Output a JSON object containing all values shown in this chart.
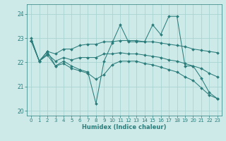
{
  "xlabel": "Humidex (Indice chaleur)",
  "ylabel": "",
  "bg_color": "#ceeae8",
  "grid_color": "#a8d4d2",
  "line_color": "#2a7d7b",
  "ylim": [
    19.8,
    24.4
  ],
  "xlim": [
    -0.5,
    23.5
  ],
  "yticks": [
    20,
    21,
    22,
    23,
    24
  ],
  "xticks": [
    0,
    1,
    2,
    3,
    4,
    5,
    6,
    7,
    8,
    9,
    10,
    11,
    12,
    13,
    14,
    15,
    16,
    17,
    18,
    19,
    20,
    21,
    22,
    23
  ],
  "lines": [
    {
      "x": [
        0,
        1,
        2,
        3,
        4,
        5,
        6,
        7,
        8,
        9,
        10,
        11,
        12,
        13,
        14,
        15,
        16,
        17,
        18,
        19,
        20,
        21,
        22,
        23
      ],
      "y": [
        23.0,
        22.05,
        22.45,
        21.85,
        22.05,
        21.85,
        21.7,
        21.6,
        20.3,
        22.05,
        22.8,
        23.55,
        22.85,
        22.85,
        22.85,
        23.55,
        23.15,
        23.9,
        23.9,
        21.85,
        21.85,
        21.35,
        20.75,
        20.5
      ]
    },
    {
      "x": [
        0,
        1,
        2,
        3,
        4,
        5,
        6,
        7,
        8,
        9,
        10,
        11,
        12,
        13,
        14,
        15,
        16,
        17,
        18,
        19,
        20,
        21,
        22,
        23
      ],
      "y": [
        22.9,
        22.05,
        22.45,
        22.35,
        22.55,
        22.55,
        22.7,
        22.75,
        22.75,
        22.85,
        22.85,
        22.9,
        22.9,
        22.9,
        22.85,
        22.85,
        22.8,
        22.75,
        22.7,
        22.65,
        22.55,
        22.5,
        22.45,
        22.4
      ]
    },
    {
      "x": [
        0,
        1,
        2,
        3,
        4,
        5,
        6,
        7,
        8,
        9,
        10,
        11,
        12,
        13,
        14,
        15,
        16,
        17,
        18,
        19,
        20,
        21,
        22,
        23
      ],
      "y": [
        22.9,
        22.05,
        22.35,
        22.05,
        22.2,
        22.1,
        22.2,
        22.2,
        22.2,
        22.35,
        22.35,
        22.4,
        22.35,
        22.35,
        22.3,
        22.25,
        22.2,
        22.1,
        22.05,
        21.95,
        21.85,
        21.75,
        21.55,
        21.4
      ]
    },
    {
      "x": [
        0,
        1,
        2,
        3,
        4,
        5,
        6,
        7,
        8,
        9,
        10,
        11,
        12,
        13,
        14,
        15,
        16,
        17,
        18,
        19,
        20,
        21,
        22,
        23
      ],
      "y": [
        22.9,
        22.05,
        22.3,
        21.85,
        21.95,
        21.75,
        21.65,
        21.55,
        21.3,
        21.5,
        21.9,
        22.05,
        22.05,
        22.05,
        21.95,
        21.9,
        21.8,
        21.7,
        21.6,
        21.4,
        21.25,
        20.95,
        20.65,
        20.5
      ]
    }
  ]
}
